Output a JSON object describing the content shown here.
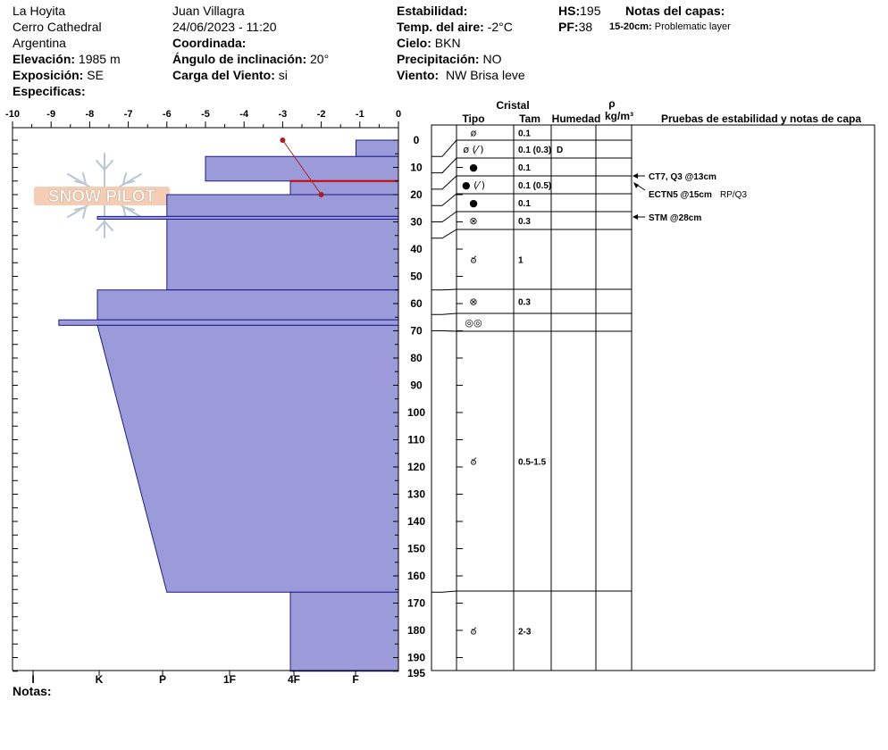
{
  "header": {
    "location_name": "La Hoyita",
    "area": "Cerro Cathedral",
    "country": "Argentina",
    "elevation_label": "Elevación:",
    "elevation_value": "1985 m",
    "aspect_label": "Exposición:",
    "aspect_value": "SE",
    "specifics_label": "Especificas:",
    "observer": "Juan Villagra",
    "datetime": "24/06/2023 - 11:20",
    "coord_label": "Coordinada:",
    "slope_label": "Ángulo de inclinación:",
    "slope_value": "20°",
    "wind_load_label": "Carga del Viento:",
    "wind_load_value": "si",
    "stability_label": "Estabilidad:",
    "air_temp_label": "Temp. del aire:",
    "air_temp_value": "-2°C",
    "sky_label": "Cielo:",
    "sky_value": "BKN",
    "precip_label": "Precipitación:",
    "precip_value": "NO",
    "wind_label": "Viento:",
    "wind_value": "NW Brisa leve",
    "hs_label": "HS:",
    "hs_value": "195",
    "pf_label": "PF:",
    "pf_value": "38",
    "layer_notes_label": "Notas del capas:",
    "layer_note_range": "15-20cm:",
    "layer_note_text": "Problematic layer"
  },
  "footer": {
    "notes_label": "Notas:"
  },
  "watermark": {
    "text": "SNOW PILOT"
  },
  "colors": {
    "hardness_fill": "#9b9bd9",
    "hardness_stroke": "#1a1a8c",
    "temp_line": "#b01c1c",
    "red_layer": "#cc0000"
  },
  "table_headers": {
    "crystal": "Cristal",
    "type": "Tipo",
    "size": "Tam",
    "moisture": "Humedad",
    "rho": "ρ",
    "density_unit": "kg/m³",
    "tests": "Pruebas de estabilidad y notas de capa"
  },
  "chart_data": {
    "type": "snow_profile",
    "temp_axis": {
      "ticks": [
        "-10",
        "-9",
        "-8",
        "-7",
        "-6",
        "-5",
        "-4",
        "-3",
        "-2",
        "-1",
        "0"
      ],
      "range": [
        -10,
        0
      ]
    },
    "depth_axis": {
      "labels": [
        "0",
        "10",
        "20",
        "30",
        "40",
        "50",
        "60",
        "70",
        "80",
        "90",
        "100",
        "110",
        "120",
        "130",
        "140",
        "150",
        "160",
        "170",
        "180",
        "190",
        "195"
      ],
      "range": [
        0,
        195
      ]
    },
    "hardness_axis": {
      "labels": [
        "I",
        "K",
        "P",
        "1F",
        "4F",
        "F"
      ]
    },
    "temperature_profile": [
      {
        "depth": 0,
        "temp": -3.0
      },
      {
        "depth": 20,
        "temp": -2.0
      }
    ],
    "hardness_layers": [
      {
        "top": 0,
        "bottom": 6,
        "top_hardness": 1.1,
        "bottom_hardness": 1.1
      },
      {
        "top": 6,
        "bottom": 15,
        "top_hardness": 5.0,
        "bottom_hardness": 5.0
      },
      {
        "top": 15,
        "bottom": 20,
        "top_hardness": 2.8,
        "bottom_hardness": 2.8
      },
      {
        "top": 20,
        "bottom": 28,
        "top_hardness": 6.0,
        "bottom_hardness": 6.0
      },
      {
        "top": 28,
        "bottom": 29,
        "top_hardness": 7.8,
        "bottom_hardness": 7.8
      },
      {
        "top": 29,
        "bottom": 55,
        "top_hardness": 6.0,
        "bottom_hardness": 6.0
      },
      {
        "top": 55,
        "bottom": 66,
        "top_hardness": 7.8,
        "bottom_hardness": 7.8
      },
      {
        "top": 66,
        "bottom": 68,
        "top_hardness": 8.8,
        "bottom_hardness": 8.8
      },
      {
        "top": 68,
        "bottom": 166,
        "top_hardness": 7.8,
        "bottom_hardness": 6.0
      },
      {
        "top": 166,
        "bottom": 195,
        "top_hardness": 2.8,
        "bottom_hardness": 2.8
      }
    ],
    "problematic_boundaries": [
      15
    ],
    "layers": [
      {
        "top": 0,
        "bottom": 6,
        "symbol": "ø",
        "size": "0.1",
        "moisture": ""
      },
      {
        "top": 6,
        "bottom": 12,
        "symbol": "ø (⁄′)",
        "size": "0.1 (0.3)",
        "moisture": "D"
      },
      {
        "top": 12,
        "bottom": 18,
        "symbol": "●",
        "size": "0.1",
        "moisture": ""
      },
      {
        "top": 18,
        "bottom": 24,
        "symbol": "● (⁄′)",
        "size": "0.1 (0.5)",
        "moisture": ""
      },
      {
        "top": 24,
        "bottom": 30,
        "symbol": "●",
        "size": "0.1",
        "moisture": ""
      },
      {
        "top": 30,
        "bottom": 36,
        "symbol": "⊗",
        "size": "0.3",
        "moisture": ""
      },
      {
        "top": 36,
        "bottom": 55,
        "symbol": "ఠ",
        "size": "1",
        "moisture": ""
      },
      {
        "top": 55,
        "bottom": 64,
        "symbol": "⊗",
        "size": "0.3",
        "moisture": ""
      },
      {
        "top": 64,
        "bottom": 70,
        "symbol": "◎◎",
        "size": "",
        "moisture": ""
      },
      {
        "top": 70,
        "bottom": 166,
        "symbol": "ఠ",
        "size": "0.5-1.5",
        "moisture": ""
      },
      {
        "top": 166,
        "bottom": 195,
        "symbol": "ఠ",
        "size": "2-3",
        "moisture": ""
      }
    ],
    "tests": [
      {
        "depth": 13,
        "text": "CT7, Q3 @13cm",
        "extra": ""
      },
      {
        "depth": 15,
        "text": "ECTN5 @15cm",
        "extra": "RP/Q3"
      },
      {
        "depth": 28,
        "text": "STM @28cm",
        "extra": ""
      }
    ]
  }
}
